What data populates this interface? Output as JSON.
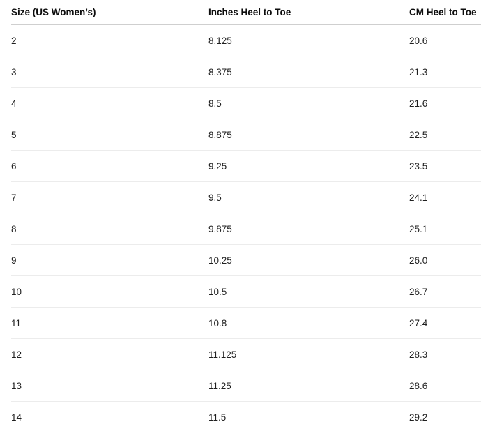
{
  "table": {
    "headers": {
      "size": "Size (US Women’s)",
      "inches": "Inches Heel to Toe",
      "cm": "CM Heel to Toe"
    },
    "rows": [
      {
        "size": "2",
        "inches": "8.125",
        "cm": "20.6"
      },
      {
        "size": "3",
        "inches": "8.375",
        "cm": "21.3"
      },
      {
        "size": "4",
        "inches": "8.5",
        "cm": "21.6"
      },
      {
        "size": "5",
        "inches": "8.875",
        "cm": "22.5"
      },
      {
        "size": "6",
        "inches": "9.25",
        "cm": "23.5"
      },
      {
        "size": "7",
        "inches": "9.5",
        "cm": "24.1"
      },
      {
        "size": "8",
        "inches": "9.875",
        "cm": "25.1"
      },
      {
        "size": "9",
        "inches": "10.25",
        "cm": "26.0"
      },
      {
        "size": "10",
        "inches": "10.5",
        "cm": "26.7"
      },
      {
        "size": "11",
        "inches": "10.8",
        "cm": "27.4"
      },
      {
        "size": "12",
        "inches": "11.125",
        "cm": "28.3"
      },
      {
        "size": "13",
        "inches": "11.25",
        "cm": "28.6"
      },
      {
        "size": "14",
        "inches": "11.5",
        "cm": "29.2"
      }
    ]
  }
}
